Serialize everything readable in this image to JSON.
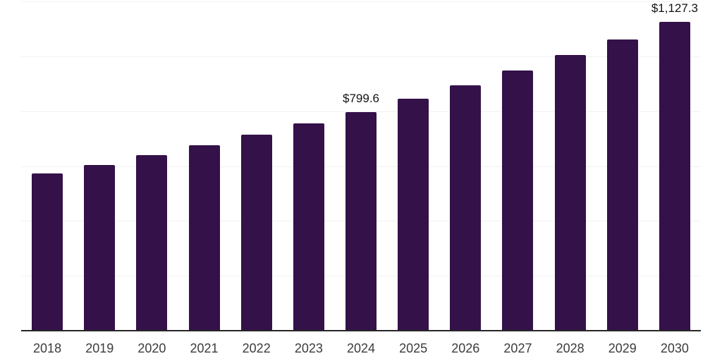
{
  "chart_data": {
    "type": "bar",
    "title": "",
    "xlabel": "",
    "ylabel": "",
    "categories": [
      "2018",
      "2019",
      "2020",
      "2021",
      "2022",
      "2023",
      "2024",
      "2025",
      "2026",
      "2027",
      "2028",
      "2029",
      "2030"
    ],
    "values": [
      576,
      606,
      643,
      678,
      717,
      758,
      799.6,
      847,
      896,
      950,
      1006,
      1065,
      1127.3
    ],
    "data_labels": [
      "",
      "",
      "",
      "",
      "",
      "",
      "$799.6",
      "",
      "",
      "",
      "",
      "",
      "$1,127.3"
    ],
    "ylim": [
      0,
      1200
    ],
    "y_gridlines": [
      200,
      400,
      600,
      800,
      1000,
      1200
    ],
    "grid": true,
    "legend": false
  },
  "colors": {
    "background": "#ffffff",
    "bar": "#341149",
    "gridline": "#f1f1f1",
    "axis_line": "#262626",
    "tick_label": "#3c3c3c",
    "value_label": "#121212"
  }
}
